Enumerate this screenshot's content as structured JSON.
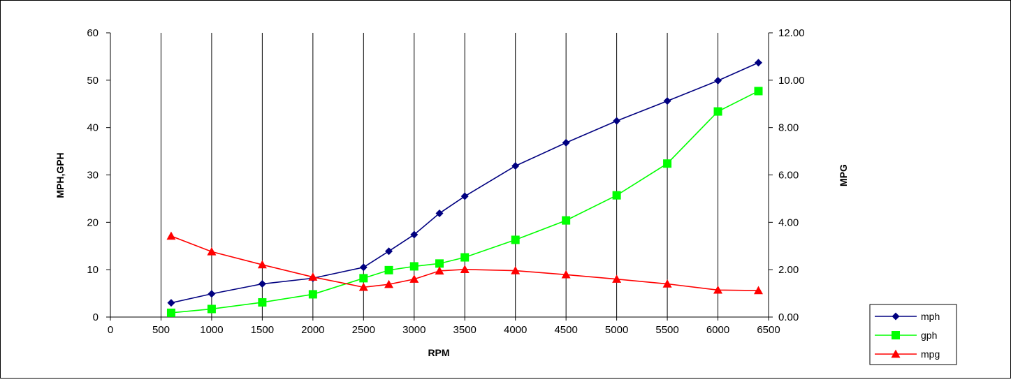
{
  "chart_data": {
    "type": "line",
    "title": "",
    "xlabel": "RPM",
    "ylabel": "MPH,GPH",
    "y2label": "MPG",
    "xlim": [
      0,
      6500
    ],
    "ylim": [
      0,
      60
    ],
    "y2lim": [
      0,
      12
    ],
    "xticks": [
      "0",
      "500",
      "1000",
      "1500",
      "2000",
      "2500",
      "3000",
      "3500",
      "4000",
      "4500",
      "5000",
      "5500",
      "6000",
      "6500"
    ],
    "yticks": [
      "0",
      "10",
      "20",
      "30",
      "40",
      "50",
      "60"
    ],
    "y2ticks": [
      "0.00",
      "2.00",
      "4.00",
      "6.00",
      "8.00",
      "10.00",
      "12.00"
    ],
    "grid": "vertical",
    "legend_position": "bottom-right",
    "series": [
      {
        "name": "mph",
        "axis": "left",
        "color": "#000080",
        "marker": "diamond",
        "x": [
          600,
          1000,
          1500,
          2000,
          2500,
          2750,
          3000,
          3250,
          3500,
          4000,
          4500,
          5000,
          5500,
          6000,
          6400
        ],
        "y": [
          3.0,
          4.9,
          7.0,
          8.2,
          10.5,
          13.9,
          17.4,
          21.9,
          25.5,
          31.9,
          36.8,
          41.4,
          45.6,
          49.9,
          53.7
        ]
      },
      {
        "name": "gph",
        "axis": "left",
        "color": "#00ff00",
        "marker": "square",
        "x": [
          600,
          1000,
          1500,
          2000,
          2500,
          2750,
          3000,
          3250,
          3500,
          4000,
          4500,
          5000,
          5500,
          6000,
          6400
        ],
        "y": [
          0.9,
          1.7,
          3.1,
          4.8,
          8.2,
          9.9,
          10.7,
          11.3,
          12.6,
          16.3,
          20.4,
          25.7,
          32.4,
          43.4,
          47.7
        ]
      },
      {
        "name": "mpg",
        "axis": "right",
        "color": "#ff0000",
        "marker": "triangle",
        "x": [
          600,
          1000,
          1500,
          2000,
          2500,
          2750,
          3000,
          3250,
          3500,
          4000,
          4500,
          5000,
          5500,
          6000,
          6400
        ],
        "y": [
          3.42,
          2.76,
          2.21,
          1.69,
          1.26,
          1.38,
          1.6,
          1.95,
          2.01,
          1.96,
          1.79,
          1.6,
          1.4,
          1.14,
          1.12
        ]
      }
    ]
  }
}
